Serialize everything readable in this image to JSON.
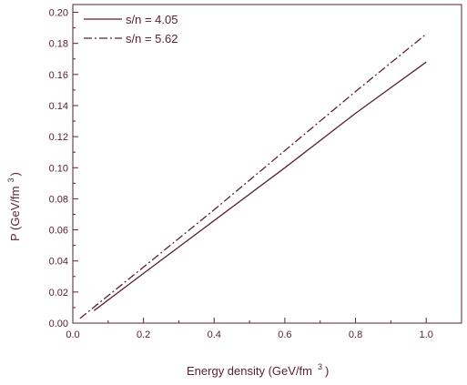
{
  "chart_data": {
    "type": "line",
    "xlabel": "Energy density (GeV/fm",
    "xlabel_sup": "3",
    "xlabel_close": ")",
    "ylabel": "P (GeV/fm",
    "ylabel_sup": "3",
    "ylabel_close": ")",
    "xlim": [
      0.0,
      1.1
    ],
    "ylim": [
      0.0,
      0.205
    ],
    "xticks": [
      "0.0",
      "0.2",
      "0.4",
      "0.6",
      "0.8",
      "1.0"
    ],
    "yticks": [
      "0.00",
      "0.02",
      "0.04",
      "0.06",
      "0.08",
      "0.10",
      "0.12",
      "0.14",
      "0.16",
      "0.18",
      "0.20"
    ],
    "grid": false,
    "legend_position": "top-left",
    "axis_color": "#5a2230",
    "series": [
      {
        "name": "s/n = 4.05",
        "style": "solid",
        "color": "#5a2230",
        "x": [
          0.06,
          0.2,
          0.4,
          0.6,
          0.8,
          1.0
        ],
        "y": [
          0.008,
          0.032,
          0.066,
          0.1,
          0.135,
          0.168
        ]
      },
      {
        "name": "s/n = 5.62",
        "style": "dashdot",
        "color": "#5a2230",
        "x": [
          0.02,
          0.2,
          0.4,
          0.6,
          0.8,
          1.0
        ],
        "y": [
          0.003,
          0.036,
          0.073,
          0.111,
          0.149,
          0.186
        ]
      }
    ]
  }
}
